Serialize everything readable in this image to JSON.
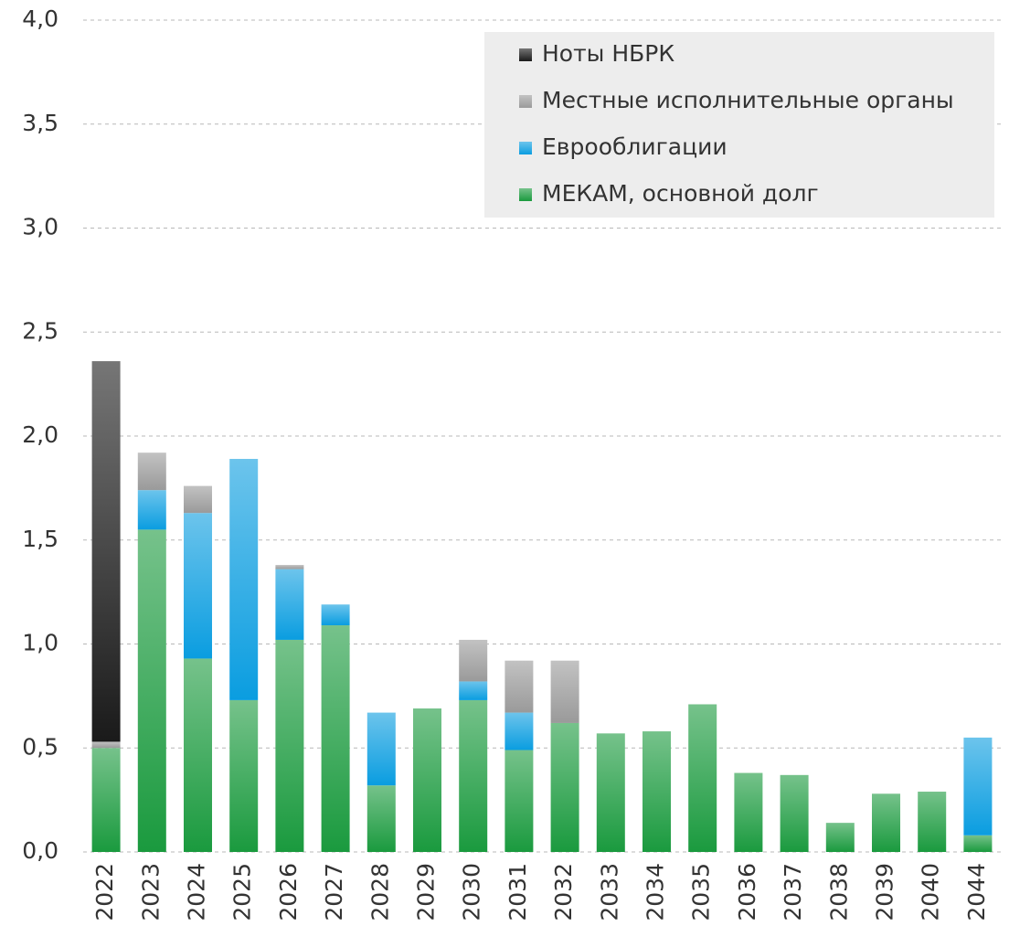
{
  "chart_data": {
    "type": "stacked_bar",
    "categories": [
      "2022",
      "2023",
      "2024",
      "2025",
      "2026",
      "2027",
      "2028",
      "2029",
      "2030",
      "2031",
      "2032",
      "2033",
      "2034",
      "2035",
      "2036",
      "2037",
      "2038",
      "2039",
      "2040",
      "2044"
    ],
    "series": [
      {
        "name": "Ноты НБРК",
        "color": "#1a1a1a",
        "values": [
          1.83,
          0,
          0,
          0,
          0,
          0,
          0,
          0,
          0,
          0,
          0,
          0,
          0,
          0,
          0,
          0,
          0,
          0,
          0,
          0
        ]
      },
      {
        "name": "Местные исполнительные органы",
        "color": "#9a9a9a",
        "values": [
          0.03,
          0.18,
          0.13,
          0,
          0.02,
          0,
          0,
          0,
          0.2,
          0.25,
          0.3,
          0,
          0,
          0,
          0,
          0,
          0,
          0,
          0,
          0
        ]
      },
      {
        "name": "Еврооблигации",
        "color": "#0a9de0",
        "values": [
          0,
          0.19,
          0.7,
          1.16,
          0.34,
          0.1,
          0.35,
          0,
          0.09,
          0.18,
          0,
          0,
          0,
          0,
          0,
          0,
          0,
          0,
          0,
          0.47
        ]
      },
      {
        "name": "МЕКАМ, основной долг",
        "color": "#1a9a3e",
        "values": [
          0.5,
          1.55,
          0.93,
          0.73,
          1.02,
          1.09,
          0.32,
          0.69,
          0.73,
          0.49,
          0.62,
          0.57,
          0.58,
          0.71,
          0.38,
          0.37,
          0.14,
          0.28,
          0.29,
          0.08
        ]
      }
    ],
    "ylim": [
      0,
      4
    ],
    "yticks": [
      {
        "value": 0,
        "label": "0,0"
      },
      {
        "value": 0.5,
        "label": "0,5"
      },
      {
        "value": 1,
        "label": "1,0"
      },
      {
        "value": 1.5,
        "label": "1,5"
      },
      {
        "value": 2,
        "label": "2,0"
      },
      {
        "value": 2.5,
        "label": "2,5"
      },
      {
        "value": 3,
        "label": "3,0"
      },
      {
        "value": 3.5,
        "label": "3,5"
      },
      {
        "value": 4,
        "label": "4,0"
      }
    ],
    "grid": true,
    "legend": "top-right"
  }
}
